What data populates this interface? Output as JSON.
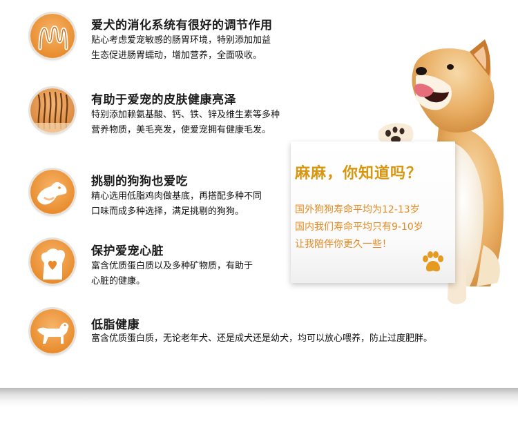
{
  "features": [
    {
      "icon": "intestine-icon",
      "title": "爱犬的消化系统有很好的调节作用",
      "lines": [
        "贴心考虑爱宠敏感的肠胃环境，特别添加加益",
        "生态促进肠胃蠕动，增加营养，全面吸收。"
      ]
    },
    {
      "icon": "hair-follicle-icon",
      "title": "有助于爱宠的皮肤健康亮泽",
      "lines": [
        "特别添加赖氨基酸、钙、铁、锌及维生素等多种",
        "营养物质，美毛亮发，使爱宠拥有健康毛发。"
      ]
    },
    {
      "icon": "dog-head-icon",
      "title": "挑剔的狗狗也爱吃",
      "lines": [
        "精心选用低脂鸡肉做基底，再搭配多种不同",
        "口味而成多种选择，满足挑剔的狗狗。"
      ]
    },
    {
      "icon": "dog-heart-icon",
      "title": "保护爱宠心脏",
      "lines": [
        "富含优质蛋白质以及多种矿物质，有助于",
        "心脏的健康。"
      ]
    },
    {
      "icon": "dog-body-icon",
      "title": "低脂健康",
      "lines": [
        "富含优质蛋白质，无论老年犬、还是成犬还是幼犬，均可以放心喂养，防止过度肥胖。"
      ]
    }
  ],
  "card": {
    "title": "麻麻，你知道吗？",
    "lines": [
      "国外狗狗寿命平均为12-13岁",
      "国内我们寿命平均只有9-10岁",
      "让我陪伴你更久一些！"
    ]
  },
  "colors": {
    "accent_orange": "#e58a22",
    "title_gold": "#d8960e",
    "icon_orange": "#f0a24a"
  }
}
